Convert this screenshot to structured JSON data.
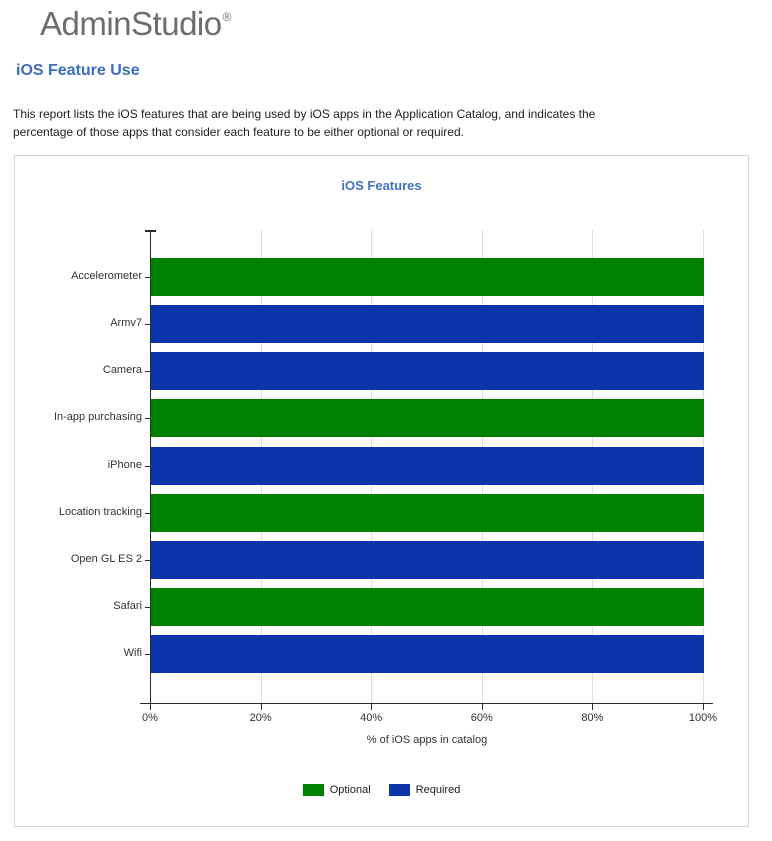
{
  "logo": {
    "text": "AdminStudio",
    "registered_mark": "®"
  },
  "page": {
    "title": "iOS Feature Use",
    "description_line1": "This report lists the iOS features that are being used by iOS apps in the Application Catalog, and indicates the",
    "description_line2": "percentage of those apps  that consider each feature to be either optional or required."
  },
  "colors": {
    "logo_gray": "#6d6d6d",
    "heading_blue": "#3b6dbf",
    "chart_title_blue": "#4173bd",
    "optional_green": "#008000",
    "required_blue": "#0b35a8",
    "gridline_gray": "#dedede",
    "axis_dark": "#2b2b2b",
    "panel_border_gray": "#d7d7d7"
  },
  "chart_data": {
    "type": "bar",
    "orientation": "horizontal",
    "title": "iOS Features",
    "xlabel": "% of iOS apps in catalog",
    "ylabel": "",
    "xlim": [
      0,
      100
    ],
    "x_ticks": [
      "0%",
      "20%",
      "40%",
      "60%",
      "80%",
      "100%"
    ],
    "grid": "vertical-gridlines-on",
    "legend_position": "bottom-center",
    "categories": [
      "Accelerometer",
      "Armv7",
      "Camera",
      "In-app purchasing",
      "iPhone",
      "Location tracking",
      "Open GL ES 2",
      "Safari",
      "Wifi"
    ],
    "bars": [
      {
        "category": "Accelerometer",
        "series": "Optional",
        "value": 100
      },
      {
        "category": "Armv7",
        "series": "Required",
        "value": 100
      },
      {
        "category": "Camera",
        "series": "Required",
        "value": 100
      },
      {
        "category": "In-app purchasing",
        "series": "Optional",
        "value": 100
      },
      {
        "category": "iPhone",
        "series": "Required",
        "value": 100
      },
      {
        "category": "Location tracking",
        "series": "Optional",
        "value": 100
      },
      {
        "category": "Open GL ES 2",
        "series": "Required",
        "value": 100
      },
      {
        "category": "Safari",
        "series": "Optional",
        "value": 100
      },
      {
        "category": "Wifi",
        "series": "Required",
        "value": 100
      }
    ],
    "legend": [
      {
        "label": "Optional",
        "color": "#008000"
      },
      {
        "label": "Required",
        "color": "#0b35a8"
      }
    ]
  }
}
